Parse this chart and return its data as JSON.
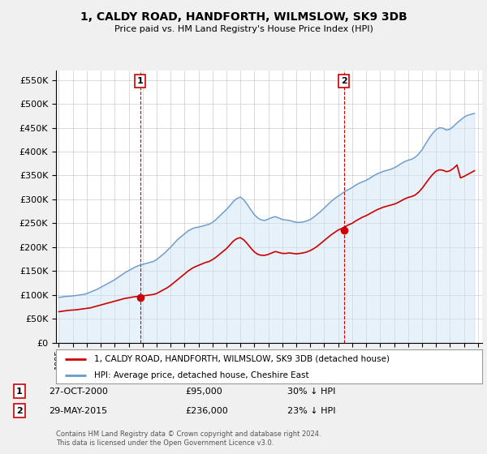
{
  "title": "1, CALDY ROAD, HANDFORTH, WILMSLOW, SK9 3DB",
  "subtitle": "Price paid vs. HM Land Registry's House Price Index (HPI)",
  "ylim": [
    0,
    570000
  ],
  "yticks": [
    0,
    50000,
    100000,
    150000,
    200000,
    250000,
    300000,
    350000,
    400000,
    450000,
    500000,
    550000
  ],
  "xmin": 1994.8,
  "xmax": 2025.3,
  "xticks": [
    1995,
    1996,
    1997,
    1998,
    1999,
    2000,
    2001,
    2002,
    2003,
    2004,
    2005,
    2006,
    2007,
    2008,
    2009,
    2010,
    2011,
    2012,
    2013,
    2014,
    2015,
    2016,
    2017,
    2018,
    2019,
    2020,
    2021,
    2022,
    2023,
    2024,
    2025
  ],
  "sale1_x": 2000.82,
  "sale1_y": 95000,
  "sale1_label": "1",
  "sale1_date": "27-OCT-2000",
  "sale1_price": "£95,000",
  "sale1_hpi": "30% ↓ HPI",
  "sale2_x": 2015.41,
  "sale2_y": 236000,
  "sale2_label": "2",
  "sale2_date": "29-MAY-2015",
  "sale2_price": "£236,000",
  "sale2_hpi": "23% ↓ HPI",
  "legend_property": "1, CALDY ROAD, HANDFORTH, WILMSLOW, SK9 3DB (detached house)",
  "legend_hpi": "HPI: Average price, detached house, Cheshire East",
  "footnote1": "Contains HM Land Registry data © Crown copyright and database right 2024.",
  "footnote2": "This data is licensed under the Open Government Licence v3.0.",
  "line_color_red": "#cc0000",
  "line_color_blue": "#6699cc",
  "fill_color_blue": "#d0e4f5",
  "background_color": "#f0f0f0",
  "plot_bg": "#ffffff",
  "grid_color": "#cccccc",
  "hpi_data_x": [
    1995.0,
    1995.25,
    1995.5,
    1995.75,
    1996.0,
    1996.25,
    1996.5,
    1996.75,
    1997.0,
    1997.25,
    1997.5,
    1997.75,
    1998.0,
    1998.25,
    1998.5,
    1998.75,
    1999.0,
    1999.25,
    1999.5,
    1999.75,
    2000.0,
    2000.25,
    2000.5,
    2000.75,
    2001.0,
    2001.25,
    2001.5,
    2001.75,
    2002.0,
    2002.25,
    2002.5,
    2002.75,
    2003.0,
    2003.25,
    2003.5,
    2003.75,
    2004.0,
    2004.25,
    2004.5,
    2004.75,
    2005.0,
    2005.25,
    2005.5,
    2005.75,
    2006.0,
    2006.25,
    2006.5,
    2006.75,
    2007.0,
    2007.25,
    2007.5,
    2007.75,
    2008.0,
    2008.25,
    2008.5,
    2008.75,
    2009.0,
    2009.25,
    2009.5,
    2009.75,
    2010.0,
    2010.25,
    2010.5,
    2010.75,
    2011.0,
    2011.25,
    2011.5,
    2011.75,
    2012.0,
    2012.25,
    2012.5,
    2012.75,
    2013.0,
    2013.25,
    2013.5,
    2013.75,
    2014.0,
    2014.25,
    2014.5,
    2014.75,
    2015.0,
    2015.25,
    2015.5,
    2015.75,
    2016.0,
    2016.25,
    2016.5,
    2016.75,
    2017.0,
    2017.25,
    2017.5,
    2017.75,
    2018.0,
    2018.25,
    2018.5,
    2018.75,
    2019.0,
    2019.25,
    2019.5,
    2019.75,
    2020.0,
    2020.25,
    2020.5,
    2020.75,
    2021.0,
    2021.25,
    2021.5,
    2021.75,
    2022.0,
    2022.25,
    2022.5,
    2022.75,
    2023.0,
    2023.25,
    2023.5,
    2023.75,
    2024.0,
    2024.25,
    2024.5,
    2024.75
  ],
  "hpi_data_y": [
    95000,
    96000,
    97000,
    97500,
    98000,
    99000,
    100000,
    101000,
    103000,
    106000,
    109000,
    112000,
    116000,
    120000,
    124000,
    128000,
    132000,
    137000,
    142000,
    147000,
    151000,
    155000,
    159000,
    162000,
    164000,
    166000,
    168000,
    170000,
    174000,
    180000,
    186000,
    193000,
    200000,
    208000,
    216000,
    222000,
    228000,
    234000,
    238000,
    241000,
    242000,
    244000,
    246000,
    248000,
    252000,
    258000,
    265000,
    272000,
    279000,
    287000,
    296000,
    302000,
    305000,
    299000,
    289000,
    278000,
    268000,
    261000,
    257000,
    256000,
    259000,
    262000,
    264000,
    261000,
    258000,
    257000,
    256000,
    254000,
    252000,
    252000,
    253000,
    255000,
    258000,
    263000,
    269000,
    275000,
    282000,
    289000,
    296000,
    302000,
    307000,
    312000,
    317000,
    321000,
    325000,
    330000,
    334000,
    337000,
    340000,
    344000,
    349000,
    353000,
    356000,
    359000,
    361000,
    363000,
    366000,
    370000,
    375000,
    379000,
    382000,
    384000,
    388000,
    395000,
    404000,
    416000,
    428000,
    438000,
    446000,
    450000,
    449000,
    445000,
    447000,
    453000,
    460000,
    466000,
    472000,
    476000,
    478000,
    480000
  ],
  "red_data_x": [
    1995.0,
    1995.25,
    1995.5,
    1995.75,
    1996.0,
    1996.25,
    1996.5,
    1996.75,
    1997.0,
    1997.25,
    1997.5,
    1997.75,
    1998.0,
    1998.25,
    1998.5,
    1998.75,
    1999.0,
    1999.25,
    1999.5,
    1999.75,
    2000.0,
    2000.25,
    2000.5,
    2000.75,
    2001.0,
    2001.25,
    2001.5,
    2001.75,
    2002.0,
    2002.25,
    2002.5,
    2002.75,
    2003.0,
    2003.25,
    2003.5,
    2003.75,
    2004.0,
    2004.25,
    2004.5,
    2004.75,
    2005.0,
    2005.25,
    2005.5,
    2005.75,
    2006.0,
    2006.25,
    2006.5,
    2006.75,
    2007.0,
    2007.25,
    2007.5,
    2007.75,
    2008.0,
    2008.25,
    2008.5,
    2008.75,
    2009.0,
    2009.25,
    2009.5,
    2009.75,
    2010.0,
    2010.25,
    2010.5,
    2010.75,
    2011.0,
    2011.25,
    2011.5,
    2011.75,
    2012.0,
    2012.25,
    2012.5,
    2012.75,
    2013.0,
    2013.25,
    2013.5,
    2013.75,
    2014.0,
    2014.25,
    2014.5,
    2014.75,
    2015.0,
    2015.25,
    2015.5,
    2015.75,
    2016.0,
    2016.25,
    2016.5,
    2016.75,
    2017.0,
    2017.25,
    2017.5,
    2017.75,
    2018.0,
    2018.25,
    2018.5,
    2018.75,
    2019.0,
    2019.25,
    2019.5,
    2019.75,
    2020.0,
    2020.25,
    2020.5,
    2020.75,
    2021.0,
    2021.25,
    2021.5,
    2021.75,
    2022.0,
    2022.25,
    2022.5,
    2022.75,
    2023.0,
    2023.25,
    2023.5,
    2023.75,
    2024.0,
    2024.25,
    2024.5,
    2024.75
  ],
  "red_data_y": [
    65000,
    66000,
    67000,
    68000,
    68500,
    69000,
    70000,
    71000,
    72000,
    73000,
    75000,
    77000,
    79000,
    81000,
    83000,
    85000,
    87000,
    89000,
    91000,
    93000,
    94000,
    95500,
    96500,
    97500,
    98000,
    99000,
    100000,
    101000,
    103000,
    107000,
    111000,
    115000,
    120000,
    126000,
    132000,
    138000,
    144000,
    150000,
    155000,
    159000,
    162000,
    165000,
    168000,
    170000,
    174000,
    179000,
    185000,
    191000,
    197000,
    205000,
    213000,
    218000,
    220000,
    215000,
    207000,
    198000,
    190000,
    185000,
    183000,
    183000,
    185000,
    188000,
    191000,
    189000,
    187000,
    187000,
    188000,
    187000,
    186000,
    187000,
    188000,
    190000,
    193000,
    197000,
    202000,
    208000,
    214000,
    220000,
    226000,
    231000,
    236000,
    239000,
    243000,
    247000,
    250000,
    255000,
    259000,
    263000,
    266000,
    270000,
    274000,
    278000,
    281000,
    284000,
    286000,
    288000,
    290000,
    293000,
    297000,
    301000,
    304000,
    306000,
    309000,
    315000,
    323000,
    333000,
    343000,
    352000,
    359000,
    362000,
    361000,
    358000,
    360000,
    365000,
    372000,
    345000,
    348000,
    352000,
    356000,
    360000
  ]
}
